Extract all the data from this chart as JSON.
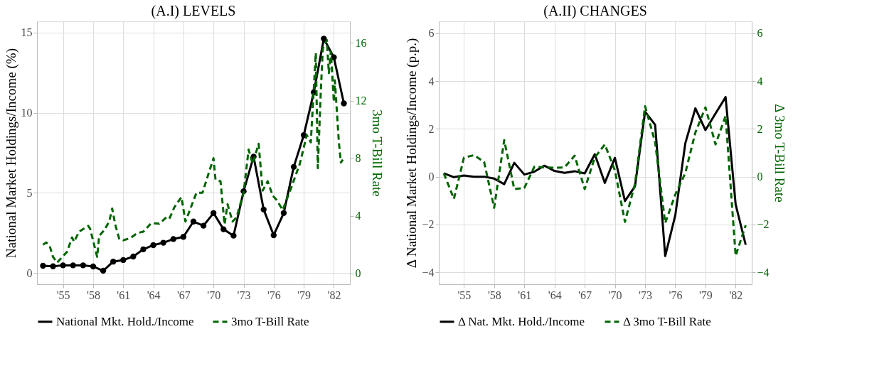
{
  "chart_data": [
    {
      "type": "line",
      "title": "(A.I) LEVELS",
      "ylabel": "National Market Holdings/Income (%)",
      "y2label": "3mo T-Bill Rate",
      "x": [
        1953,
        1954,
        1955,
        1956,
        1957,
        1958,
        1959,
        1960,
        1961,
        1962,
        1963,
        1964,
        1965,
        1966,
        1967,
        1968,
        1969,
        1970,
        1971,
        1972,
        1973,
        1974,
        1975,
        1976,
        1977,
        1978,
        1979,
        1980,
        1981,
        1982,
        1983
      ],
      "xlim": [
        1952.4,
        1983.6
      ],
      "xticks": [
        {
          "value": 1955,
          "label": "'55"
        },
        {
          "value": 1958,
          "label": "'58"
        },
        {
          "value": 1961,
          "label": "'61"
        },
        {
          "value": 1964,
          "label": "'64"
        },
        {
          "value": 1967,
          "label": "'67"
        },
        {
          "value": 1970,
          "label": "'70"
        },
        {
          "value": 1973,
          "label": "'73"
        },
        {
          "value": 1976,
          "label": "'76"
        },
        {
          "value": 1979,
          "label": "'79"
        },
        {
          "value": 1982,
          "label": "'82"
        }
      ],
      "ylim": [
        -0.7,
        15.7
      ],
      "yticks": [
        0,
        5,
        10,
        15
      ],
      "y2lim": [
        -0.75,
        17.5
      ],
      "y2ticks": [
        0,
        4,
        8,
        12,
        16
      ],
      "grid": true,
      "legend": "bottom",
      "series": [
        {
          "name": "National Mkt. Hold./Income",
          "color": "#000000",
          "marker": "circle",
          "line_style": "solid",
          "values": [
            0.45,
            0.42,
            0.48,
            0.48,
            0.48,
            0.41,
            0.14,
            0.71,
            0.81,
            1.03,
            1.48,
            1.74,
            1.89,
            2.12,
            2.26,
            3.21,
            2.95,
            3.74,
            2.73,
            2.33,
            5.1,
            7.26,
            3.96,
            2.36,
            3.74,
            6.62,
            8.6,
            11.27,
            14.62,
            13.45,
            10.58
          ]
        },
        {
          "name": "3mo T-Bill Rate",
          "color": "#006400",
          "axis": "y2",
          "marker": "none",
          "line_style": "dashed",
          "x": [
            1953.0,
            1953.33,
            1953.66,
            1954.0,
            1954.4,
            1955.4,
            1955.9,
            1956.1,
            1956.6,
            1957.5,
            1957.7,
            1958.4,
            1958.6,
            1959.1,
            1959.6,
            1959.9,
            1960.2,
            1960.6,
            1961.0,
            1961.7,
            1962.4,
            1963.0,
            1963.8,
            1964.6,
            1965.3,
            1965.6,
            1966.1,
            1966.8,
            1967.2,
            1967.7,
            1968.3,
            1968.9,
            1969.4,
            1970.0,
            1970.2,
            1970.7,
            1971.1,
            1971.4,
            1971.9,
            1972.3,
            1973.0,
            1973.5,
            1973.9,
            1974.5,
            1974.9,
            1975.4,
            1975.9,
            1976.3,
            1976.9,
            1977.8,
            1978.6,
            1979.3,
            1979.7,
            1980.2,
            1980.4,
            1980.7,
            1980.9,
            1981.3,
            1981.5,
            1981.7,
            1982.0,
            1982.1,
            1982.5,
            1982.7,
            1982.9
          ],
          "values": [
            2.0,
            2.15,
            1.92,
            1.15,
            0.75,
            1.5,
            2.5,
            2.2,
            2.9,
            3.3,
            3.1,
            1.15,
            2.6,
            3.0,
            3.6,
            4.5,
            3.4,
            2.4,
            2.3,
            2.45,
            2.8,
            2.9,
            3.5,
            3.45,
            3.9,
            3.8,
            4.6,
            5.3,
            3.6,
            4.5,
            5.6,
            5.6,
            6.7,
            8.0,
            6.5,
            6.4,
            3.4,
            4.8,
            3.6,
            3.9,
            5.6,
            8.6,
            7.6,
            9.0,
            5.75,
            6.4,
            5.4,
            5.1,
            4.4,
            6.05,
            7.6,
            9.6,
            9.1,
            15.3,
            7.3,
            12.7,
            15.6,
            16.2,
            13.9,
            15.4,
            11.9,
            13.4,
            9.1,
            7.7,
            7.9
          ]
        }
      ]
    },
    {
      "type": "line",
      "title": "(A.II) CHANGES",
      "ylabel": "Δ National Market Holdings/Income (p.p.)",
      "y2label": "Δ 3mo T-Bill Rate",
      "x": [
        1953,
        1954,
        1955,
        1956,
        1957,
        1958,
        1959,
        1960,
        1961,
        1962,
        1963,
        1964,
        1965,
        1966,
        1967,
        1968,
        1969,
        1970,
        1971,
        1972,
        1973,
        1974,
        1975,
        1976,
        1977,
        1978,
        1979,
        1980,
        1981,
        1982,
        1983
      ],
      "xlim": [
        1952.5,
        1983.6
      ],
      "xticks": [
        {
          "value": 1955,
          "label": "'55"
        },
        {
          "value": 1958,
          "label": "'58"
        },
        {
          "value": 1961,
          "label": "'61"
        },
        {
          "value": 1964,
          "label": "'64"
        },
        {
          "value": 1967,
          "label": "'67"
        },
        {
          "value": 1970,
          "label": "'70"
        },
        {
          "value": 1973,
          "label": "'73"
        },
        {
          "value": 1976,
          "label": "'76"
        },
        {
          "value": 1979,
          "label": "'79"
        },
        {
          "value": 1982,
          "label": "'82"
        }
      ],
      "ylim": [
        -4.5,
        6.5
      ],
      "yticks": [
        -4,
        -2,
        0,
        2,
        4,
        6
      ],
      "y2lim": [
        -4.5,
        6.5
      ],
      "y2ticks": [
        -4,
        -2,
        0,
        2,
        4,
        6
      ],
      "grid": true,
      "legend": "bottom",
      "series": [
        {
          "name": "Δ Nat. Mkt. Hold./Income",
          "color": "#000000",
          "marker": "none",
          "line_style": "solid",
          "values": [
            0.14,
            -0.02,
            0.05,
            0.0,
            0.0,
            -0.08,
            -0.31,
            0.58,
            0.09,
            0.21,
            0.46,
            0.24,
            0.16,
            0.23,
            0.14,
            0.94,
            -0.26,
            0.79,
            -1.02,
            -0.4,
            2.72,
            2.17,
            -3.32,
            -1.62,
            1.4,
            2.86,
            1.95,
            2.64,
            3.33,
            -1.16,
            -2.85
          ]
        },
        {
          "name": "Δ 3mo T-Bill Rate",
          "color": "#006400",
          "axis": "y2",
          "marker": "none",
          "line_style": "dashed",
          "values": [
            0.14,
            -0.93,
            0.8,
            0.9,
            0.62,
            -1.3,
            1.53,
            -0.52,
            -0.47,
            0.42,
            0.39,
            0.37,
            0.39,
            0.88,
            -0.52,
            0.8,
            1.35,
            0.26,
            -1.89,
            -0.29,
            2.95,
            1.44,
            -1.94,
            -0.75,
            0.16,
            1.85,
            2.9,
            1.35,
            2.54,
            -3.31,
            -2.03
          ]
        }
      ]
    }
  ]
}
